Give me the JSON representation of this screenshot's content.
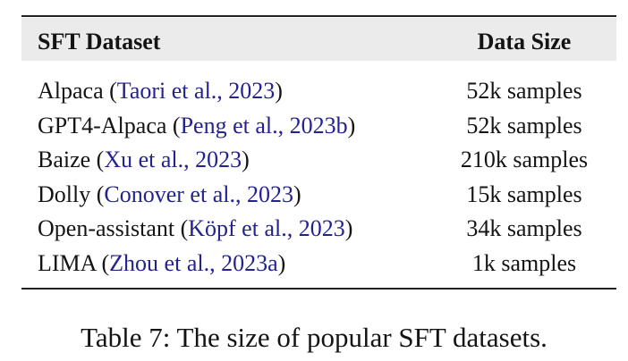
{
  "table": {
    "header": [
      "SFT Dataset",
      "Data Size"
    ],
    "rows": [
      {
        "dataset": [
          "Alpaca (",
          "Taori et al., 2023",
          ")"
        ],
        "size": "52k samples"
      },
      {
        "dataset": [
          "GPT4-Alpaca (",
          "Peng et al., 2023b",
          ")"
        ],
        "size": "52k samples"
      },
      {
        "dataset": [
          "Baize (",
          "Xu et al., 2023",
          ")"
        ],
        "size": "210k samples"
      },
      {
        "dataset": [
          "Dolly (",
          "Conover et al., 2023",
          ")"
        ],
        "size": "15k samples"
      },
      {
        "dataset": [
          "Open-assistant (",
          "Köpf et al., 2023",
          ")"
        ],
        "size": "34k samples"
      },
      {
        "dataset": [
          "LIMA (",
          "Zhou et al., 2023a",
          ")"
        ],
        "size": "1k samples"
      }
    ]
  },
  "caption": "Table 7: The size of popular SFT datasets."
}
